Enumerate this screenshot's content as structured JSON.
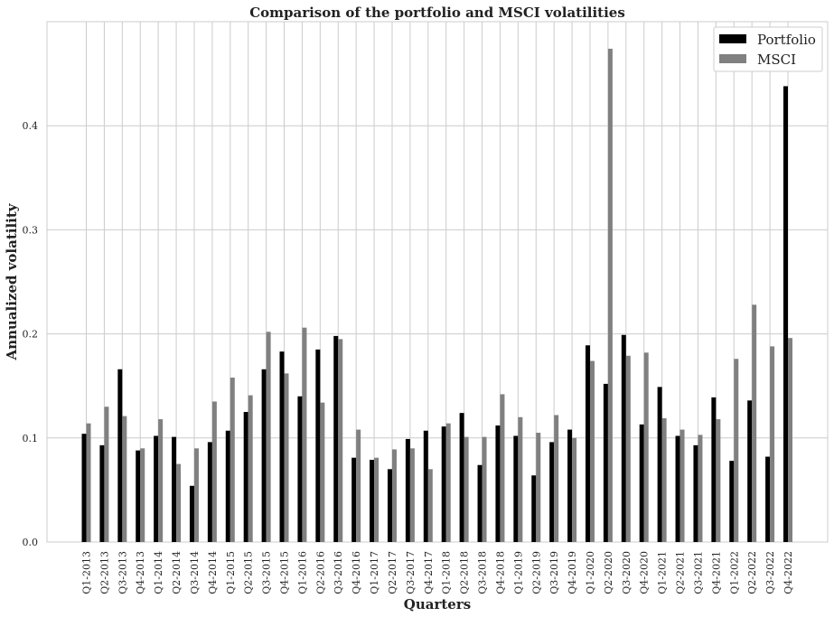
{
  "chart_data": {
    "type": "bar",
    "title": "Comparison of the portfolio and MSCI volatilities",
    "xlabel": "Quarters",
    "ylabel": "Annualized volatility",
    "ylim": [
      0,
      0.5
    ],
    "yticks": [
      "0.0",
      "0.1",
      "0.2",
      "0.3",
      "0.4"
    ],
    "grid": true,
    "legend_position": "top-right",
    "categories": [
      "Q1-2013",
      "Q2-2013",
      "Q3-2013",
      "Q4-2013",
      "Q1-2014",
      "Q2-2014",
      "Q3-2014",
      "Q4-2014",
      "Q1-2015",
      "Q2-2015",
      "Q3-2015",
      "Q4-2015",
      "Q1-2016",
      "Q2-2016",
      "Q3-2016",
      "Q4-2016",
      "Q1-2017",
      "Q2-2017",
      "Q3-2017",
      "Q4-2017",
      "Q1-2018",
      "Q2-2018",
      "Q3-2018",
      "Q4-2018",
      "Q1-2019",
      "Q2-2019",
      "Q3-2019",
      "Q4-2019",
      "Q1-2020",
      "Q2-2020",
      "Q3-2020",
      "Q4-2020",
      "Q1-2021",
      "Q2-2021",
      "Q3-2021",
      "Q4-2021",
      "Q1-2022",
      "Q2-2022",
      "Q3-2022",
      "Q4-2022"
    ],
    "series": [
      {
        "name": "Portfolio",
        "color": "#000000",
        "values": [
          0.104,
          0.093,
          0.166,
          0.088,
          0.102,
          0.101,
          0.054,
          0.096,
          0.107,
          0.125,
          0.166,
          0.183,
          0.14,
          0.185,
          0.198,
          0.081,
          0.079,
          0.07,
          0.099,
          0.107,
          0.111,
          0.124,
          0.074,
          0.112,
          0.102,
          0.064,
          0.096,
          0.108,
          0.189,
          0.152,
          0.199,
          0.113,
          0.149,
          0.102,
          0.093,
          0.139,
          0.078,
          0.136,
          0.082,
          0.438
        ]
      },
      {
        "name": "MSCI",
        "color": "#808080",
        "values": [
          0.114,
          0.13,
          0.121,
          0.09,
          0.118,
          0.075,
          0.09,
          0.135,
          0.158,
          0.141,
          0.202,
          0.162,
          0.206,
          0.134,
          0.195,
          0.108,
          0.081,
          0.089,
          0.09,
          0.07,
          0.114,
          0.101,
          0.101,
          0.142,
          0.12,
          0.105,
          0.122,
          0.1,
          0.174,
          0.474,
          0.179,
          0.182,
          0.119,
          0.108,
          0.103,
          0.118,
          0.176,
          0.228,
          0.188,
          0.196
        ]
      }
    ]
  }
}
